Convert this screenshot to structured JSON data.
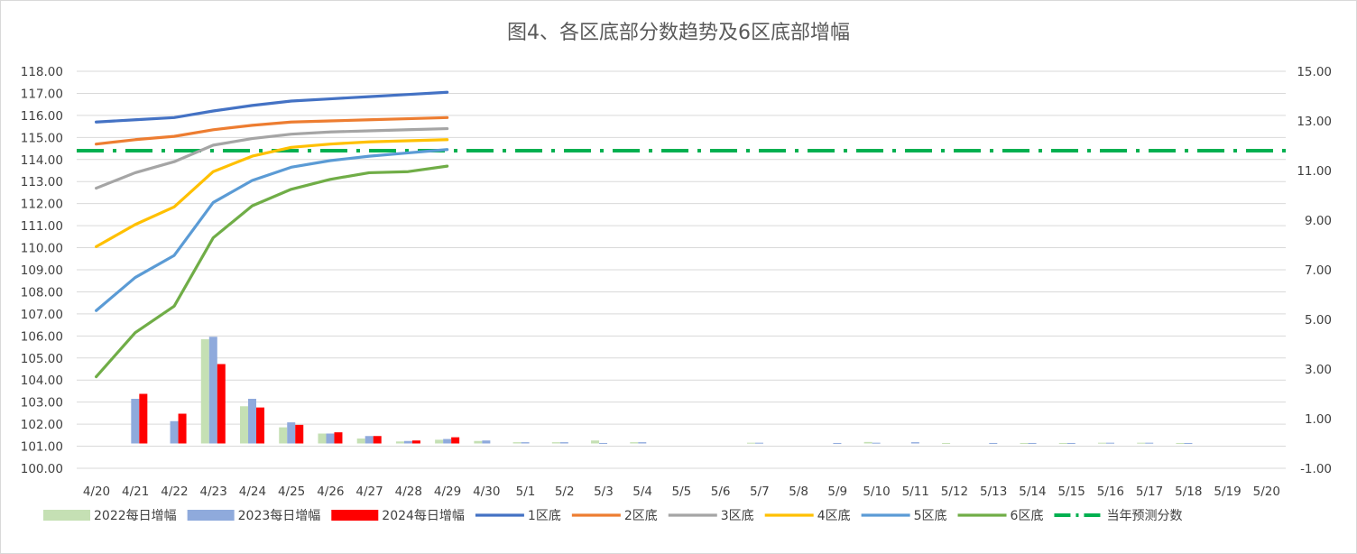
{
  "chart_data": {
    "type": "bar",
    "title": "图4、各区底部分数趋势及6区底部增幅",
    "categories": [
      "4/20",
      "4/21",
      "4/22",
      "4/23",
      "4/24",
      "4/25",
      "4/26",
      "4/27",
      "4/28",
      "4/29",
      "4/30",
      "5/1",
      "5/2",
      "5/3",
      "5/4",
      "5/5",
      "5/6",
      "5/7",
      "5/8",
      "5/9",
      "5/10",
      "5/11",
      "5/12",
      "5/13",
      "5/14",
      "5/15",
      "5/16",
      "5/17",
      "5/18",
      "5/19",
      "5/20"
    ],
    "left_axis": {
      "ylim": [
        100,
        118
      ],
      "ticks": [
        "100.00",
        "101.00",
        "102.00",
        "103.00",
        "104.00",
        "105.00",
        "106.00",
        "107.00",
        "108.00",
        "109.00",
        "110.00",
        "111.00",
        "112.00",
        "113.00",
        "114.00",
        "115.00",
        "116.00",
        "117.00",
        "118.00"
      ]
    },
    "right_axis": {
      "ylim": [
        -1,
        15
      ],
      "ticks": [
        "-1.00",
        "1.00",
        "3.00",
        "5.00",
        "7.00",
        "9.00",
        "11.00",
        "13.00",
        "15.00"
      ]
    },
    "bar_series": [
      {
        "name": "2022每日增幅",
        "color": "#c5e0b4",
        "axis": "right",
        "values": [
          null,
          null,
          null,
          4.2,
          1.5,
          0.65,
          0.4,
          0.2,
          0.08,
          0.15,
          0.1,
          0.05,
          0.05,
          0.12,
          0.05,
          null,
          null,
          0.03,
          null,
          null,
          0.06,
          null,
          0.02,
          null,
          0.02,
          0.02,
          0.03,
          0.03,
          0.02,
          null,
          null
        ]
      },
      {
        "name": "2023每日增幅",
        "color": "#8faadc",
        "axis": "right",
        "values": [
          null,
          1.8,
          0.9,
          4.3,
          1.8,
          0.85,
          0.4,
          0.3,
          0.1,
          0.18,
          0.12,
          0.05,
          0.05,
          0.02,
          0.05,
          null,
          null,
          0.03,
          null,
          0.02,
          0.03,
          0.05,
          null,
          0.02,
          0.02,
          0.02,
          0.03,
          0.03,
          0.02,
          null,
          null
        ]
      },
      {
        "name": "2024每日增幅",
        "color": "#ff0000",
        "axis": "right",
        "values": [
          null,
          2.0,
          1.2,
          3.2,
          1.45,
          0.75,
          0.45,
          0.3,
          0.12,
          0.25,
          null,
          null,
          null,
          null,
          null,
          null,
          null,
          null,
          null,
          null,
          null,
          null,
          null,
          null,
          null,
          null,
          null,
          null,
          null,
          null,
          null
        ]
      }
    ],
    "line_series": [
      {
        "name": "1区底",
        "color": "#4472c4",
        "axis": "left",
        "values": [
          115.7,
          115.8,
          115.9,
          116.2,
          116.45,
          116.65,
          116.75,
          116.85,
          116.95,
          117.05
        ]
      },
      {
        "name": "2区底",
        "color": "#ed7d31",
        "axis": "left",
        "values": [
          114.7,
          114.9,
          115.05,
          115.35,
          115.55,
          115.7,
          115.75,
          115.8,
          115.85,
          115.9
        ]
      },
      {
        "name": "3区底",
        "color": "#a5a5a5",
        "axis": "left",
        "values": [
          112.7,
          113.4,
          113.9,
          114.65,
          114.95,
          115.15,
          115.25,
          115.3,
          115.35,
          115.4
        ]
      },
      {
        "name": "4区底",
        "color": "#ffc000",
        "axis": "left",
        "values": [
          110.05,
          111.05,
          111.85,
          113.45,
          114.15,
          114.55,
          114.7,
          114.8,
          114.85,
          114.9
        ]
      },
      {
        "name": "5区底",
        "color": "#5b9bd5",
        "axis": "left",
        "values": [
          107.15,
          108.65,
          109.65,
          112.05,
          113.05,
          113.65,
          113.95,
          114.15,
          114.3,
          114.45
        ]
      },
      {
        "name": "6区底",
        "color": "#70ad47",
        "axis": "left",
        "values": [
          104.15,
          106.15,
          107.35,
          110.45,
          111.9,
          112.65,
          113.1,
          113.4,
          113.45,
          113.7
        ]
      }
    ],
    "reference_line": {
      "name": "当年预测分数",
      "color": "#00b050",
      "axis": "left",
      "value": 114.4,
      "style": "dash-dot"
    },
    "legend": "bottom",
    "grid": true
  }
}
